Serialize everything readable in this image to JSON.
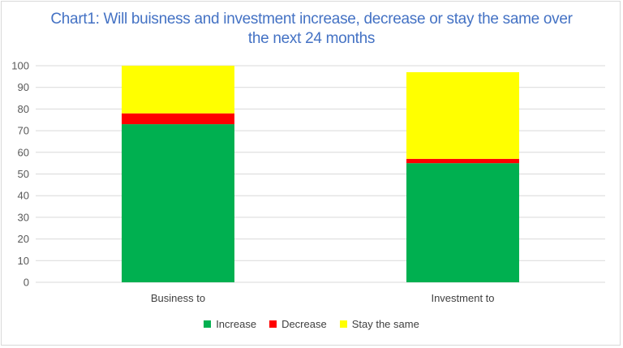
{
  "chart_data": {
    "type": "bar",
    "stacked": true,
    "title": "Chart1: Will buisness and investment increase, decrease or stay the same over the next 24 months",
    "title_lines": [
      "Chart1: Will buisness and investment increase, decrease or stay the same over",
      "the next 24 months"
    ],
    "categories": [
      "Business to",
      "Investment to"
    ],
    "series": [
      {
        "name": "Increase",
        "color": "#00b050",
        "values": [
          73,
          55
        ]
      },
      {
        "name": "Decrease",
        "color": "#ff0000",
        "values": [
          5,
          2
        ]
      },
      {
        "name": "Stay the same",
        "color": "#ffff00",
        "values": [
          22,
          40
        ]
      }
    ],
    "ylim": [
      0,
      100
    ],
    "yticks": [
      0,
      10,
      20,
      30,
      40,
      50,
      60,
      70,
      80,
      90,
      100
    ],
    "grid": true,
    "legend_position": "bottom"
  }
}
